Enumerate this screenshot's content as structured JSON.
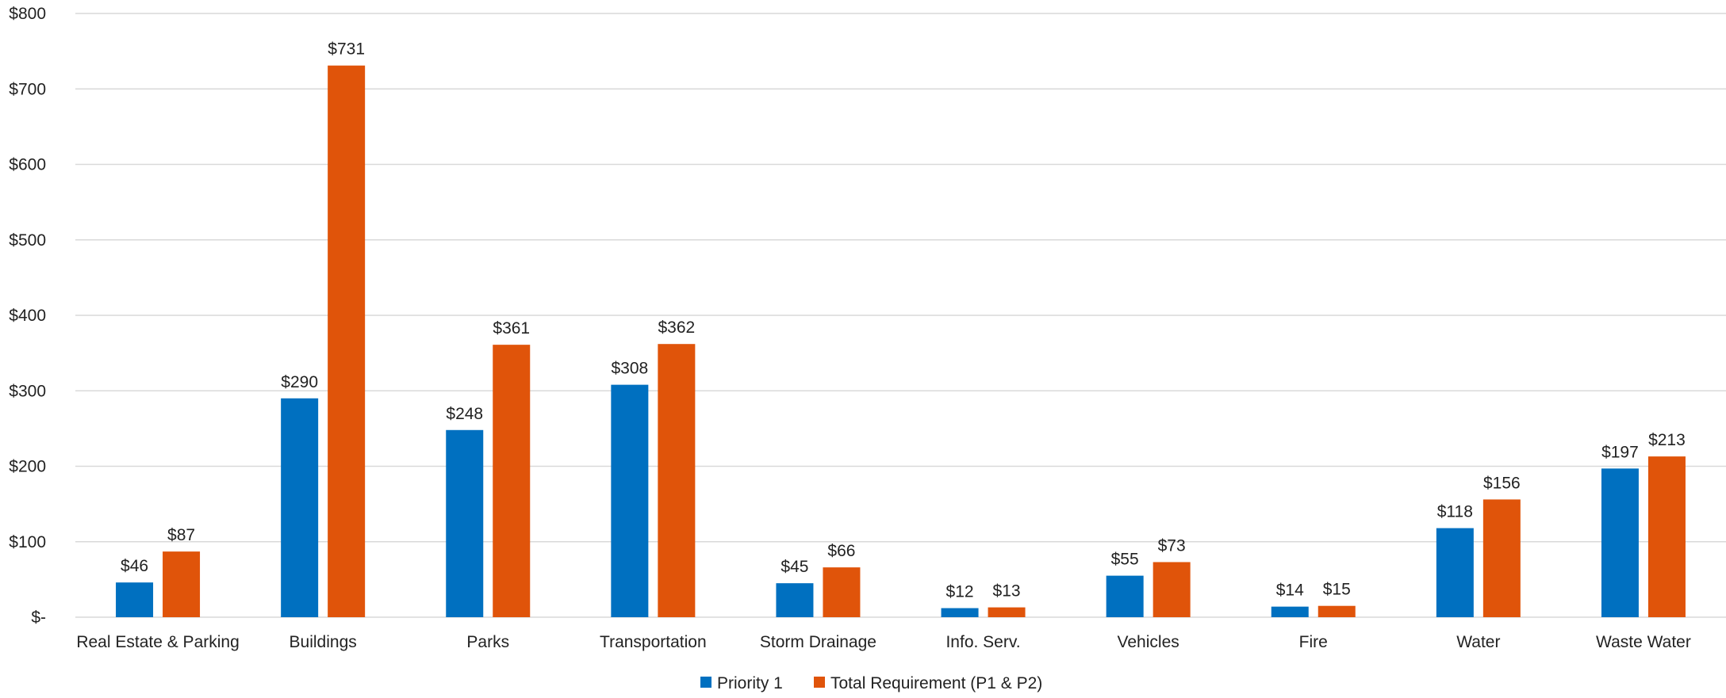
{
  "chart_data": {
    "type": "bar",
    "title": "",
    "xlabel": "",
    "ylabel": "",
    "ylim": [
      0,
      800
    ],
    "y_ticks": [
      0,
      100,
      200,
      300,
      400,
      500,
      600,
      700,
      800
    ],
    "y_tick_labels": [
      "$-",
      "$100",
      "$200",
      "$300",
      "$400",
      "$500",
      "$600",
      "$700",
      "$800"
    ],
    "grid": true,
    "legend_position": "bottom",
    "categories": [
      "Real Estate & Parking",
      "Buildings",
      "Parks",
      "Transportation",
      "Storm Drainage",
      "Info. Serv.",
      "Vehicles",
      "Fire",
      "Water",
      "Waste Water"
    ],
    "series": [
      {
        "name": "Priority 1",
        "color": "#0070C0",
        "values": [
          46,
          290,
          248,
          308,
          45,
          12,
          55,
          14,
          118,
          197
        ],
        "labels": [
          "$46",
          "$290",
          "$248",
          "$308",
          "$45",
          "$12",
          "$55",
          "$14",
          "$118",
          "$197"
        ]
      },
      {
        "name": "Total Requirement (P1 & P2)",
        "color": "#E0540A",
        "values": [
          87,
          731,
          361,
          362,
          66,
          13,
          73,
          15,
          156,
          213
        ],
        "labels": [
          "$87",
          "$731",
          "$361",
          "$362",
          "$66",
          "$13",
          "$73",
          "$15",
          "$156",
          "$213"
        ]
      }
    ]
  }
}
